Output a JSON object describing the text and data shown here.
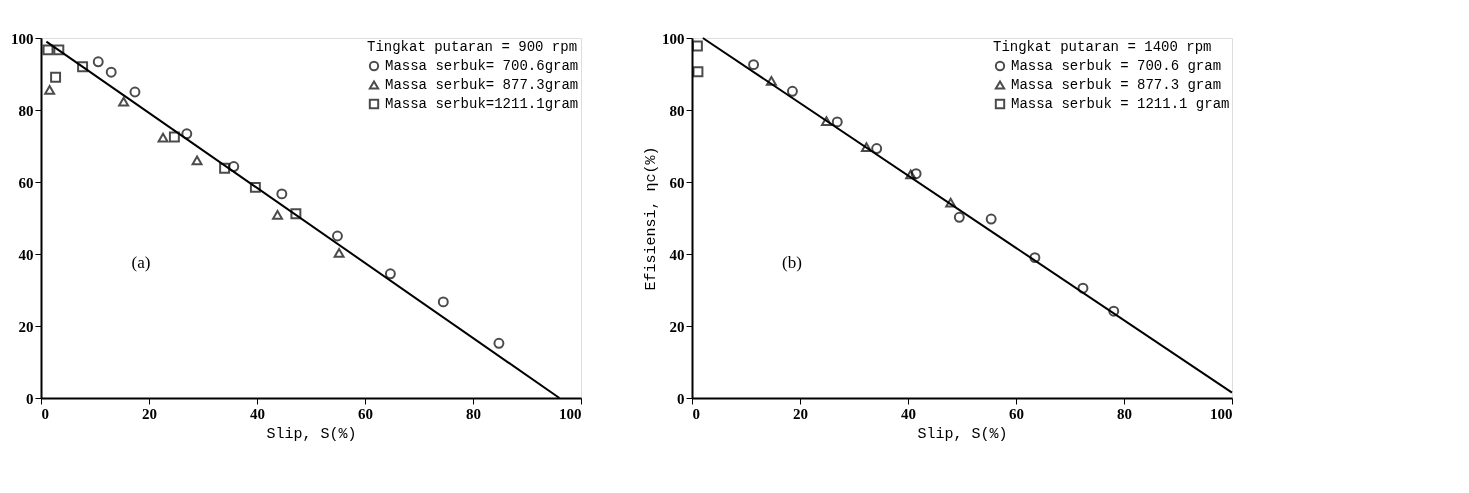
{
  "chart_data": [
    {
      "type": "scatter",
      "xlabel": "Slip, S(%)",
      "legend_title": "Tingkat putaran = 900 rpm",
      "legend": "top right",
      "grid": false,
      "xlim": [
        0,
        100
      ],
      "xticks": [
        0,
        20,
        40,
        60,
        80,
        100
      ],
      "ylim": [
        0,
        100
      ],
      "yticks": [
        0,
        20,
        40,
        60,
        80,
        100
      ],
      "annotations": [
        "(a)"
      ],
      "series": [
        {
          "name": "Massa serbuk= 700.6gram",
          "color": "#000000",
          "marker": "circle",
          "x": [
            10.6,
            13,
            17.4,
            27,
            35.7,
            44.6,
            54.9,
            64.7,
            74.5,
            84.8
          ],
          "values": [
            93.4,
            90.5,
            85,
            73.4,
            64.3,
            56.7,
            45,
            34.5,
            26.7,
            15.2
          ]
        },
        {
          "name": "Massa serbuk= 877.3gram",
          "color": "#000000",
          "marker": "triangle",
          "x": [
            1.6,
            15.3,
            22.6,
            28.9,
            43.8,
            55.2
          ],
          "values": [
            85.6,
            82.3,
            72.3,
            66,
            50.9,
            40.3
          ]
        },
        {
          "name": "Massa serbuk=1211.1gram",
          "color": "#000000",
          "marker": "square",
          "x": [
            1.3,
            3.3,
            2.7,
            7.7,
            24.7,
            34,
            39.7,
            47.2
          ],
          "values": [
            96.7,
            96.7,
            89.1,
            92,
            72.5,
            63.8,
            58.5,
            51.2
          ]
        },
        {
          "type": "line",
          "color": "#000000",
          "x": [
            1,
            96
          ],
          "values": [
            99,
            0
          ]
        }
      ]
    },
    {
      "type": "scatter",
      "xlabel": "Slip, S(%)",
      "ylabel": "Efisiensi, ηc(%)",
      "legend_title": "Tingkat putaran = 1400 rpm",
      "legend": "top right",
      "grid": false,
      "xlim": [
        0,
        100
      ],
      "xticks": [
        0,
        20,
        40,
        60,
        80,
        100
      ],
      "ylim": [
        0,
        100
      ],
      "yticks": [
        0,
        20,
        40,
        60,
        80,
        100
      ],
      "annotations": [
        "(b)"
      ],
      "series": [
        {
          "name": "Massa serbuk =  700.6 gram",
          "color": "#000000",
          "marker": "circle",
          "x": [
            11.4,
            18.6,
            26.9,
            34.2,
            41.5,
            49.5,
            55.4,
            63.5,
            72.4,
            78.1
          ],
          "values": [
            92.6,
            85.2,
            76.7,
            69.3,
            62.3,
            50.2,
            49.7,
            39,
            30.5,
            24.1
          ]
        },
        {
          "name": "Massa serbuk =  877.3 gram",
          "color": "#000000",
          "marker": "triangle",
          "x": [
            14.7,
            24.9,
            32.3,
            40.5,
            47.9
          ],
          "values": [
            88.1,
            76.9,
            69.7,
            62.1,
            54.3
          ]
        },
        {
          "name": "Massa serbuk = 1211.1 gram",
          "color": "#000000",
          "marker": "square",
          "x": [
            1.0,
            1.1
          ],
          "values": [
            97.8,
            90.6
          ]
        },
        {
          "type": "line",
          "color": "#000000",
          "x": [
            2,
            100
          ],
          "values": [
            100,
            1.5
          ]
        }
      ]
    }
  ]
}
